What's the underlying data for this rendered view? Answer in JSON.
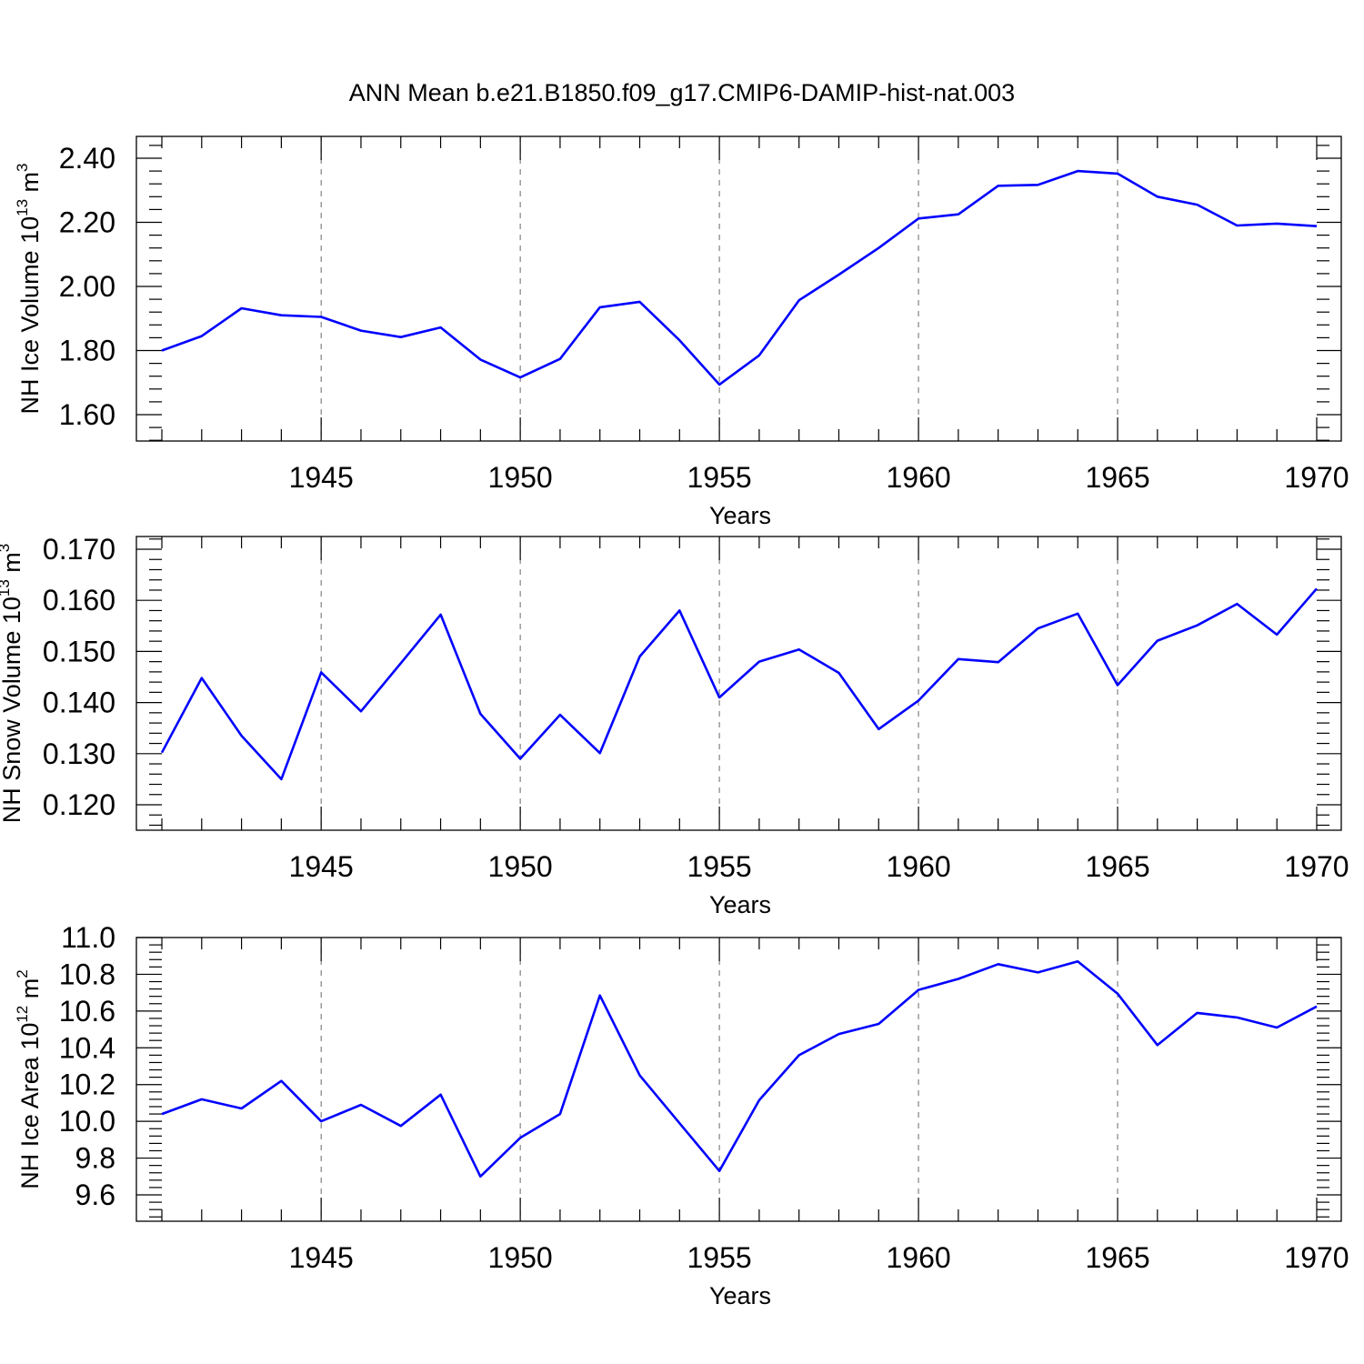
{
  "title": "ANN Mean b.e21.B1850.f09_g17.CMIP6-DAMIP-hist-nat.003",
  "colors": {
    "line": "#0000ff",
    "axis": "#000000",
    "grid": "#6a6a6a"
  },
  "chart_data": [
    {
      "type": "line",
      "ylabel": {
        "main": "NH Ice Volume 10",
        "exp": "13",
        "unit": " m",
        "unit_exp": "3"
      },
      "xlabel": "Years",
      "xlim": [
        1941,
        1970
      ],
      "ylim": [
        1.6,
        2.4
      ],
      "yticks": [
        1.6,
        1.8,
        2.0,
        2.2,
        2.4
      ],
      "ytick_labels": [
        "1.60",
        "1.80",
        "2.00",
        "2.20",
        "2.40"
      ],
      "xticks": [
        1945,
        1950,
        1955,
        1960,
        1965,
        1970
      ],
      "xtick_labels": [
        "1945",
        "1950",
        "1955",
        "1960",
        "1965",
        "1970"
      ],
      "grid": "dashed vertical at major x ticks",
      "x": [
        1941,
        1942,
        1943,
        1944,
        1945,
        1946,
        1947,
        1948,
        1949,
        1950,
        1951,
        1952,
        1953,
        1954,
        1955,
        1956,
        1957,
        1958,
        1959,
        1960,
        1961,
        1962,
        1963,
        1964,
        1965,
        1966,
        1967,
        1968,
        1969,
        1970
      ],
      "values": [
        1.8,
        1.845,
        1.932,
        1.91,
        1.905,
        1.862,
        1.842,
        1.872,
        1.772,
        1.716,
        1.774,
        1.935,
        1.952,
        1.832,
        1.694,
        1.785,
        1.957,
        2.037,
        2.12,
        2.212,
        2.225,
        2.314,
        2.317,
        2.36,
        2.352,
        2.28,
        2.255,
        2.19,
        2.196,
        2.188
      ]
    },
    {
      "type": "line",
      "ylabel": {
        "main": "NH Snow Volume 10",
        "exp": "13",
        "unit": " m",
        "unit_exp": "3"
      },
      "xlabel": "Years",
      "xlim": [
        1941,
        1970
      ],
      "ylim": [
        0.12,
        0.17
      ],
      "yticks": [
        0.12,
        0.13,
        0.14,
        0.15,
        0.16,
        0.17
      ],
      "ytick_labels": [
        "0.120",
        "0.130",
        "0.140",
        "0.150",
        "0.160",
        "0.170"
      ],
      "xticks": [
        1945,
        1950,
        1955,
        1960,
        1965,
        1970
      ],
      "xtick_labels": [
        "1945",
        "1950",
        "1955",
        "1960",
        "1965",
        "1970"
      ],
      "grid": "dashed vertical at major x ticks",
      "x": [
        1941,
        1942,
        1943,
        1944,
        1945,
        1946,
        1947,
        1948,
        1949,
        1950,
        1951,
        1952,
        1953,
        1954,
        1955,
        1956,
        1957,
        1958,
        1959,
        1960,
        1961,
        1962,
        1963,
        1964,
        1965,
        1966,
        1967,
        1968,
        1969,
        1970
      ],
      "values": [
        0.1302,
        0.1448,
        0.1335,
        0.125,
        0.1459,
        0.1383,
        0.1477,
        0.1572,
        0.1378,
        0.129,
        0.1376,
        0.1301,
        0.149,
        0.158,
        0.141,
        0.148,
        0.1504,
        0.1458,
        0.1348,
        0.1404,
        0.1485,
        0.1479,
        0.1545,
        0.1574,
        0.1434,
        0.1521,
        0.1551,
        0.1593,
        0.1533,
        0.1623
      ]
    },
    {
      "type": "line",
      "ylabel": {
        "main": "NH Ice Area 10",
        "exp": "12",
        "unit": " m",
        "unit_exp": "2"
      },
      "xlabel": "Years",
      "xlim": [
        1941,
        1970
      ],
      "ylim": [
        9.6,
        11.0
      ],
      "yticks": [
        9.6,
        9.8,
        10.0,
        10.2,
        10.4,
        10.6,
        10.8,
        11.0
      ],
      "ytick_labels": [
        "9.6",
        "9.8",
        "10.0",
        "10.2",
        "10.4",
        "10.6",
        "10.8",
        "11.0"
      ],
      "xticks": [
        1945,
        1950,
        1955,
        1960,
        1965,
        1970
      ],
      "xtick_labels": [
        "1945",
        "1950",
        "1955",
        "1960",
        "1965",
        "1970"
      ],
      "grid": "dashed vertical at major x ticks",
      "x": [
        1941,
        1942,
        1943,
        1944,
        1945,
        1946,
        1947,
        1948,
        1949,
        1950,
        1951,
        1952,
        1953,
        1954,
        1955,
        1956,
        1957,
        1958,
        1959,
        1960,
        1961,
        1962,
        1963,
        1964,
        1965,
        1966,
        1967,
        1968,
        1969,
        1970
      ],
      "values": [
        10.04,
        10.12,
        10.07,
        10.22,
        10.0,
        10.09,
        9.975,
        10.145,
        9.7,
        9.91,
        10.04,
        10.685,
        10.25,
        9.99,
        9.73,
        10.115,
        10.36,
        10.475,
        10.53,
        10.715,
        10.775,
        10.855,
        10.81,
        10.87,
        10.695,
        10.415,
        10.59,
        10.565,
        10.51,
        10.625
      ]
    }
  ]
}
